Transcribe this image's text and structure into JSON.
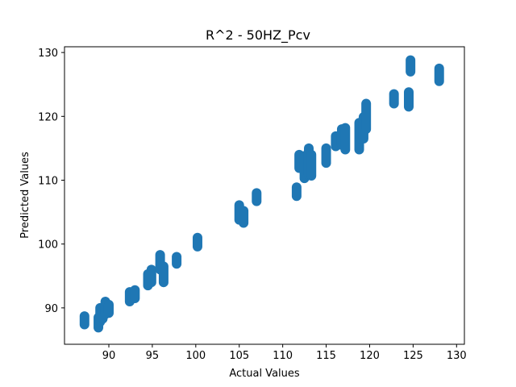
{
  "chart_data": {
    "type": "scatter",
    "title": "R^2 - 50HZ_Pcv",
    "xlabel": "Actual Values",
    "ylabel": "Predicted Values",
    "xlim": [
      84.9,
      130.9
    ],
    "ylim": [
      84.3,
      130.9
    ],
    "xticks": [
      90,
      95,
      100,
      105,
      110,
      115,
      120,
      125,
      130
    ],
    "yticks": [
      90,
      100,
      110,
      120,
      130
    ],
    "grid": false,
    "color": "#1f77b4",
    "clusters": [
      {
        "x": 87.2,
        "y_min": 87.4,
        "y_max": 88.7
      },
      {
        "x": 88.8,
        "y_min": 86.9,
        "y_max": 88.5
      },
      {
        "x": 89.0,
        "y_min": 87.8,
        "y_max": 90.0
      },
      {
        "x": 89.3,
        "y_min": 88.3,
        "y_max": 89.9
      },
      {
        "x": 89.6,
        "y_min": 89.0,
        "y_max": 91.0
      },
      {
        "x": 90.0,
        "y_min": 89.2,
        "y_max": 90.5
      },
      {
        "x": 92.4,
        "y_min": 91.0,
        "y_max": 92.5
      },
      {
        "x": 93.0,
        "y_min": 91.5,
        "y_max": 92.8
      },
      {
        "x": 94.5,
        "y_min": 93.5,
        "y_max": 95.3
      },
      {
        "x": 94.9,
        "y_min": 94.0,
        "y_max": 96.0
      },
      {
        "x": 95.9,
        "y_min": 96.0,
        "y_max": 98.3
      },
      {
        "x": 96.3,
        "y_min": 94.0,
        "y_max": 96.5
      },
      {
        "x": 97.8,
        "y_min": 96.9,
        "y_max": 98.0
      },
      {
        "x": 100.2,
        "y_min": 99.6,
        "y_max": 101.0
      },
      {
        "x": 105.0,
        "y_min": 103.8,
        "y_max": 106.1
      },
      {
        "x": 105.5,
        "y_min": 103.3,
        "y_max": 105.2
      },
      {
        "x": 107.0,
        "y_min": 106.7,
        "y_max": 108.0
      },
      {
        "x": 111.6,
        "y_min": 107.5,
        "y_max": 108.9
      },
      {
        "x": 111.9,
        "y_min": 111.9,
        "y_max": 114.0
      },
      {
        "x": 112.5,
        "y_min": 110.3,
        "y_max": 113.8
      },
      {
        "x": 113.0,
        "y_min": 110.8,
        "y_max": 115.0
      },
      {
        "x": 113.3,
        "y_min": 110.7,
        "y_max": 114.0
      },
      {
        "x": 115.0,
        "y_min": 112.7,
        "y_max": 115.0
      },
      {
        "x": 116.1,
        "y_min": 115.3,
        "y_max": 116.9
      },
      {
        "x": 116.8,
        "y_min": 115.5,
        "y_max": 118.0
      },
      {
        "x": 117.2,
        "y_min": 114.8,
        "y_max": 118.2
      },
      {
        "x": 118.8,
        "y_min": 114.8,
        "y_max": 119.0
      },
      {
        "x": 119.0,
        "y_min": 116.5,
        "y_max": 119.0
      },
      {
        "x": 119.3,
        "y_min": 116.5,
        "y_max": 119.9
      },
      {
        "x": 119.6,
        "y_min": 118.0,
        "y_max": 122.0
      },
      {
        "x": 122.8,
        "y_min": 122.0,
        "y_max": 123.5
      },
      {
        "x": 124.5,
        "y_min": 121.5,
        "y_max": 123.8
      },
      {
        "x": 124.7,
        "y_min": 127.0,
        "y_max": 128.8
      },
      {
        "x": 128.0,
        "y_min": 125.5,
        "y_max": 127.5
      }
    ]
  }
}
